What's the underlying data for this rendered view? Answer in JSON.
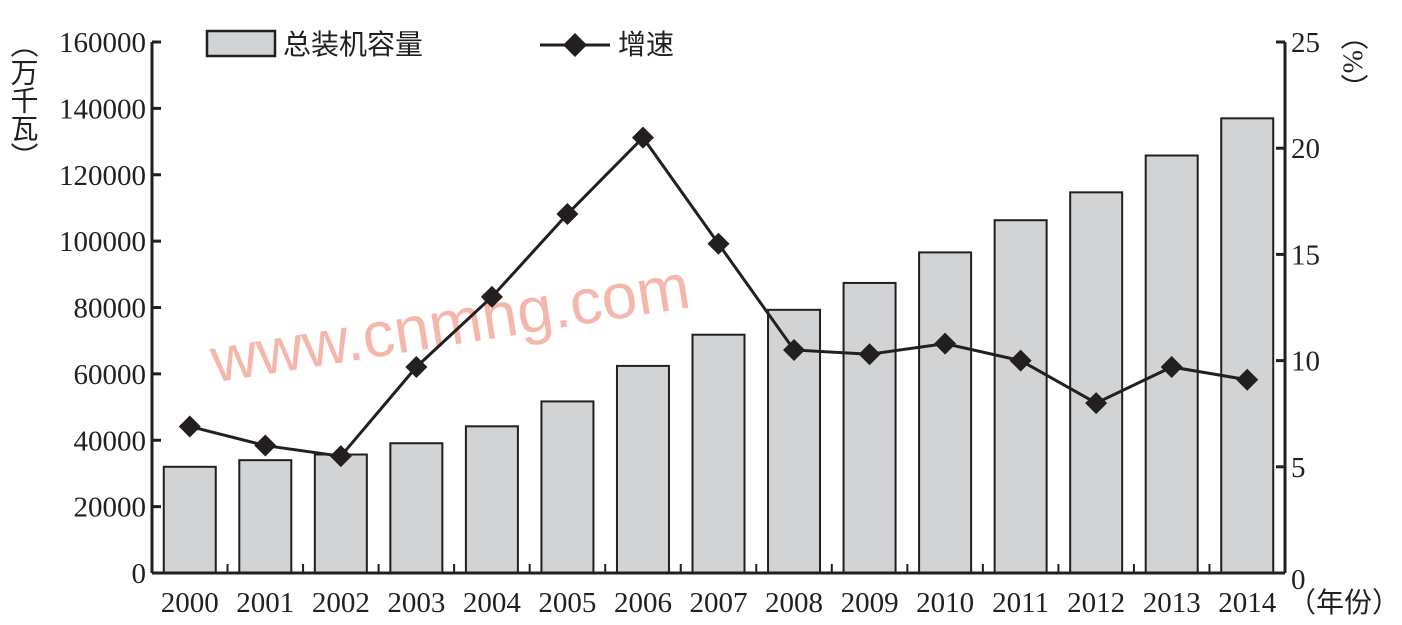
{
  "chart_data": {
    "type": "bar+line",
    "categories": [
      "2000",
      "2001",
      "2002",
      "2003",
      "2004",
      "2005",
      "2006",
      "2007",
      "2008",
      "2009",
      "2010",
      "2011",
      "2012",
      "2013",
      "2014"
    ],
    "series": [
      {
        "name": "总装机容量",
        "type": "bar",
        "axis": "left",
        "values": [
          32000,
          34000,
          35700,
          39100,
          44200,
          51700,
          62400,
          71800,
          79300,
          87400,
          96600,
          106300,
          114700,
          125800,
          137000
        ]
      },
      {
        "name": "增速",
        "type": "line",
        "axis": "right",
        "values": [
          6.9,
          6.0,
          5.5,
          9.7,
          13.0,
          16.9,
          20.5,
          15.5,
          10.5,
          10.3,
          10.8,
          10.0,
          8.0,
          9.7,
          9.1
        ]
      }
    ],
    "ylabel": "（万千瓦）",
    "y2label": "（%）",
    "xlabel": "（年份）",
    "ylim": [
      0,
      160000
    ],
    "y2lim": [
      0,
      25
    ],
    "yticks": [
      "0",
      "20000",
      "40000",
      "60000",
      "80000",
      "100000",
      "120000",
      "140000",
      "160000"
    ],
    "y2ticks": [
      "0",
      "5",
      "10",
      "15",
      "20",
      "25"
    ],
    "legend": "top",
    "grid": false,
    "colors": {
      "bar": "#d1d3d4",
      "line": "#231f20"
    }
  },
  "watermark": "www.cnmhg.com"
}
